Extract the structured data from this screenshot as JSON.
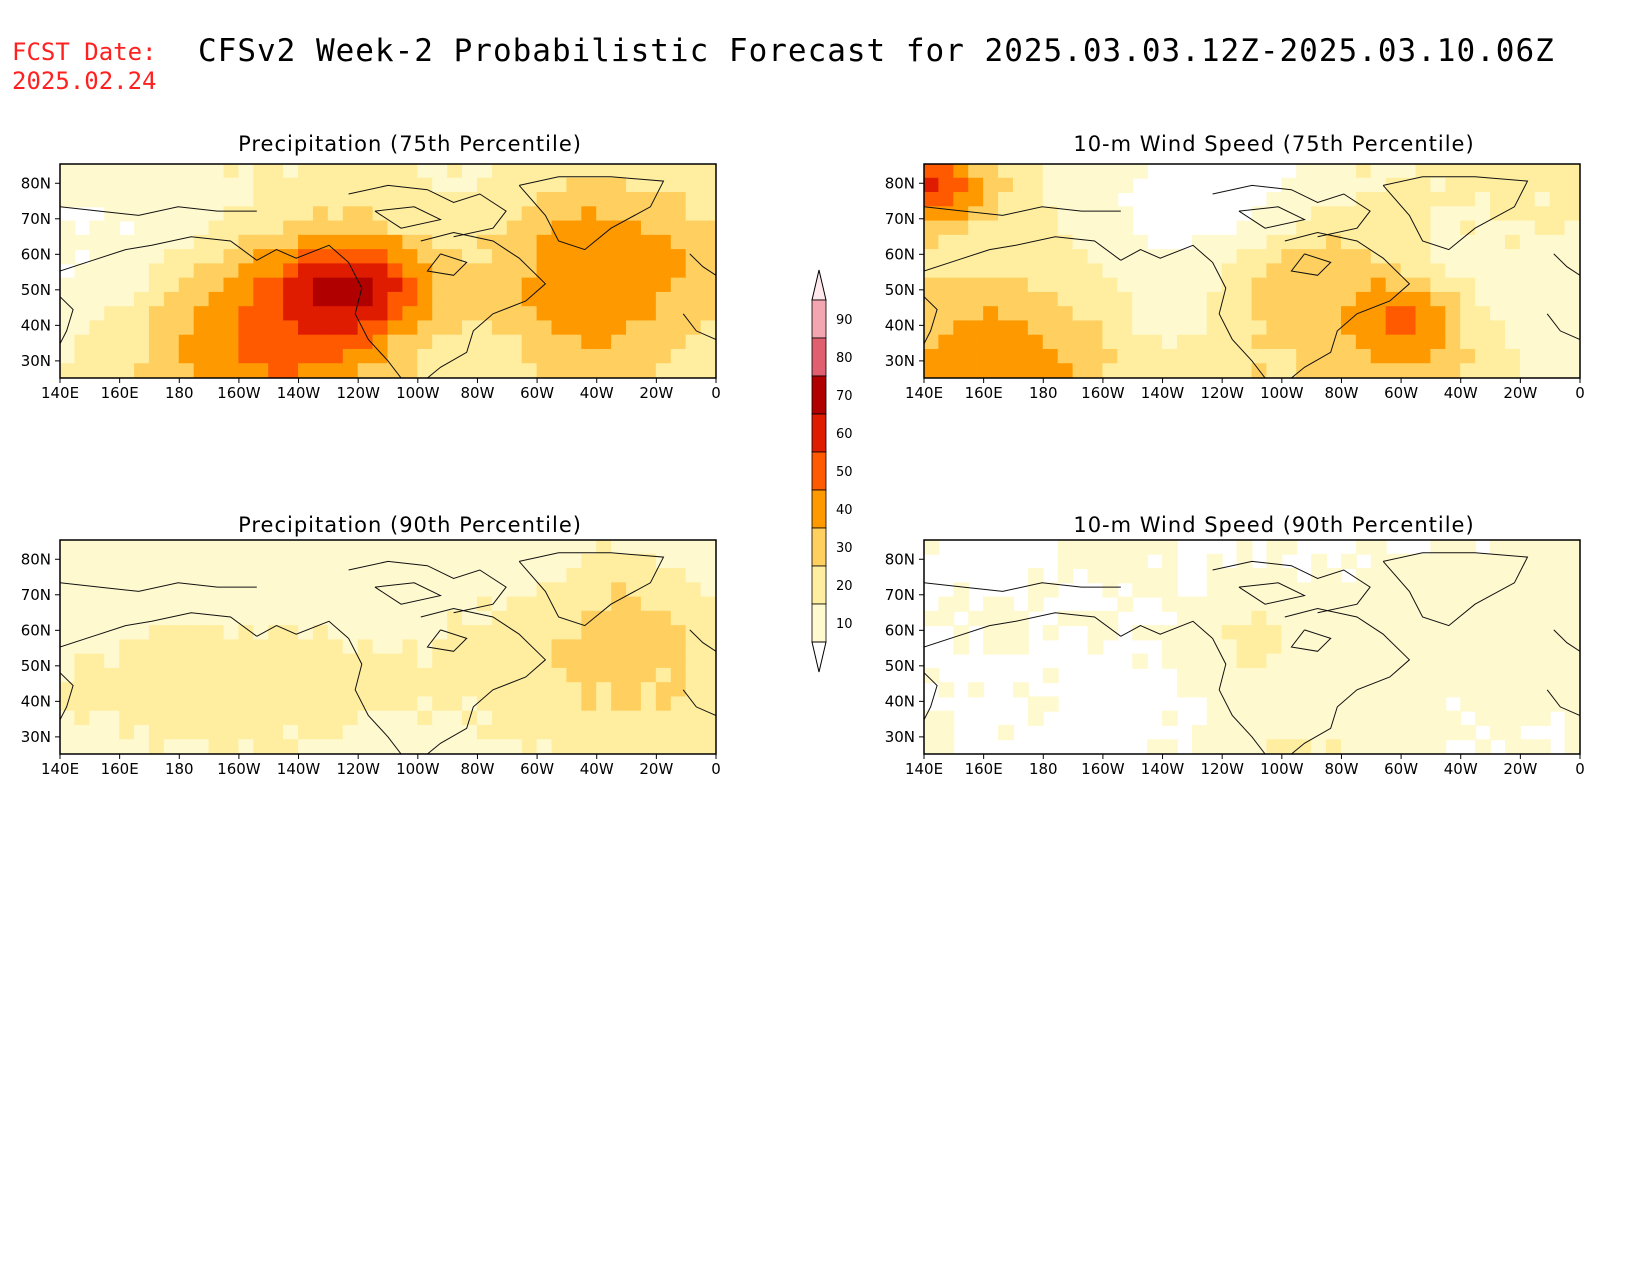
{
  "header": {
    "fcst_label": "FCST Date:",
    "fcst_date": "2025.02.24",
    "title": "CFSv2 Week-2 Probabilistic Forecast for 2025.03.03.12Z-2025.03.10.06Z"
  },
  "panels": [
    {
      "title": "Precipitation (75th Percentile)",
      "intensity": 0.62,
      "seed": 11
    },
    {
      "title": "10-m Wind Speed (75th Percentile)",
      "intensity": 0.7,
      "seed": 23
    },
    {
      "title": "Precipitation (90th Percentile)",
      "intensity": 0.22,
      "seed": 37
    },
    {
      "title": "10-m Wind Speed (90th Percentile)",
      "intensity": 0.2,
      "seed": 53
    }
  ],
  "lon_labels": [
    "140E",
    "160E",
    "180",
    "160W",
    "140W",
    "120W",
    "100W",
    "80W",
    "60W",
    "40W",
    "20W",
    "0"
  ],
  "lat_labels": [
    "80N",
    "70N",
    "60N",
    "50N",
    "40N",
    "30N"
  ],
  "colorbar": {
    "levels": [
      "90",
      "80",
      "70",
      "60",
      "50",
      "40",
      "30",
      "20",
      "10"
    ],
    "colors": [
      "#f4a6b0",
      "#e06070",
      "#b00000",
      "#e01c00",
      "#ff5a00",
      "#ff9900",
      "#ffd060",
      "#ffeea0",
      "#fff9d0"
    ],
    "max_color": "#ffe8ec",
    "min_color": "#ffffff"
  }
}
